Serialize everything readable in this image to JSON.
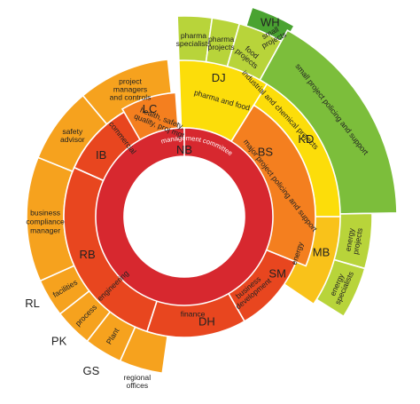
{
  "colors": {
    "red": "#d7282f",
    "red_orange": "#e8461f",
    "orange": "#f47f1f",
    "light_orange": "#f6a21e",
    "yellow_orange": "#f9c21a",
    "yellow": "#fcdd0a",
    "lime": "#b8d43a",
    "green": "#7cbe3b",
    "dark_green": "#4aa331"
  },
  "center": {
    "label": "management committee",
    "initials": "NB"
  },
  "ring2": [
    {
      "id": "ib",
      "label": "commercial",
      "initials": "IB",
      "color": "red_orange"
    },
    {
      "id": "rb",
      "label": "engineering",
      "initials": "RB",
      "color": "red_orange"
    },
    {
      "id": "dh",
      "label": "finance",
      "initials": "DH",
      "color": "red_orange"
    },
    {
      "id": "sm",
      "label": "business development",
      "label_lines": [
        "business",
        "development"
      ],
      "initials": "SM",
      "color": "red_orange"
    },
    {
      "id": "bs",
      "label": "major project policing and support",
      "initials": "BS",
      "color": "orange"
    },
    {
      "id": "lc",
      "label": "health, safety, quality, proj mgt",
      "label_lines": [
        "health, safety,",
        "quality, proj mgt"
      ],
      "initials": "LC",
      "color": "orange"
    }
  ],
  "ring3": [
    {
      "id": "bcm",
      "label": "business compliance manager",
      "label_lines": [
        "business",
        "compliance",
        "manager"
      ],
      "color": "light_orange"
    },
    {
      "id": "rl",
      "label": "facilities",
      "initials": "RL",
      "color": "light_orange"
    },
    {
      "id": "pk",
      "label": "process",
      "initials": "PK",
      "color": "light_orange"
    },
    {
      "id": "gs",
      "label": "Plant",
      "initials": "GS",
      "color": "light_orange"
    },
    {
      "id": "regional",
      "label": "regional offices",
      "label_lines": [
        "regional",
        "offices"
      ],
      "color": "light_orange"
    },
    {
      "id": "safety",
      "label": "safety advisor",
      "label_lines": [
        "safety",
        "advisor"
      ],
      "color": "light_orange"
    },
    {
      "id": "pmc",
      "label": "project managers and controls",
      "label_lines": [
        "project",
        "managers",
        "and controls"
      ],
      "color": "light_orange"
    },
    {
      "id": "dj",
      "label": "pharma and food",
      "initials": "DJ",
      "color": "yellow"
    },
    {
      "id": "kd",
      "label": "industrial and chemical projects",
      "initials": "KD",
      "color": "yellow"
    },
    {
      "id": "mb",
      "label": "energy",
      "initials": "MB",
      "color": "yellow_orange"
    }
  ],
  "ring4": [
    {
      "id": "pharma_spec",
      "label": "pharma specialists",
      "label_lines": [
        "pharma",
        "specialists"
      ],
      "color": "lime"
    },
    {
      "id": "pharma_proj",
      "label": "pharma projects",
      "label_lines": [
        "pharma",
        "projects"
      ],
      "color": "lime"
    },
    {
      "id": "food",
      "label": "food projects",
      "label_lines": [
        "food",
        "projects"
      ],
      "color": "lime"
    },
    {
      "id": "spp",
      "label": "small project policing and support",
      "color": "green"
    },
    {
      "id": "energy_proj",
      "label": "energy projects",
      "label_lines": [
        "energy",
        "projects"
      ],
      "color": "lime"
    },
    {
      "id": "energy_spec",
      "label": "energy specialists",
      "label_lines": [
        "energy",
        "specialists"
      ],
      "color": "lime"
    }
  ],
  "ring5": [
    {
      "id": "wh",
      "label": "small projects",
      "label_lines": [
        "small",
        "projects"
      ],
      "initials": "WH",
      "color": "dark_green"
    }
  ]
}
